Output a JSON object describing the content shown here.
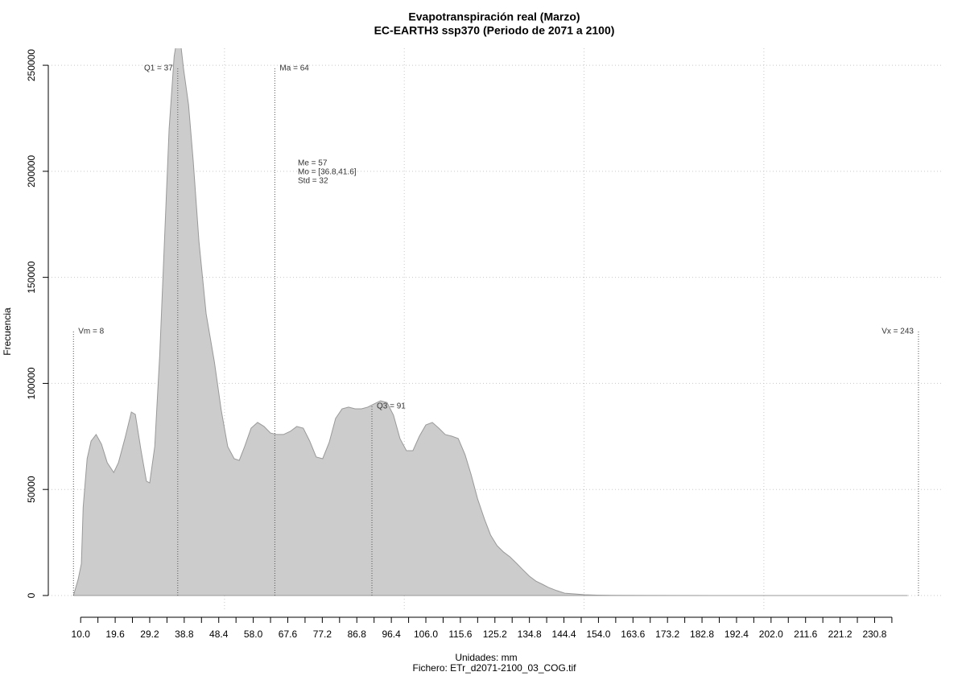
{
  "chart_data": {
    "type": "area",
    "title": "Evapotranspiración real (Marzo)",
    "subtitle": "EC-EARTH3 ssp370 (Periodo de 2071 a 2100)",
    "x_label": "Unidades: mm",
    "footnote": "Fichero: ETr_d2071-2100_03_COG.tif",
    "y_label": "Frecuencia",
    "color": "#cccccc",
    "line_color": "#999999",
    "x": [
      8,
      9.3,
      10.2,
      10.7,
      11.8,
      12.9,
      14.3,
      15.8,
      17.4,
      19.2,
      20.5,
      22.3,
      24.1,
      25.2,
      26.8,
      28.3,
      29.2,
      30.6,
      32.0,
      33.3,
      34.6,
      36.0,
      37.3,
      38.6,
      40.0,
      41.3,
      42.9,
      44.9,
      47.2,
      49.1,
      50.9,
      52.7,
      54.1,
      55.6,
      57.4,
      59.2,
      61.0,
      62.8,
      64.6,
      66.4,
      68.3,
      70.1,
      71.9,
      73.7,
      75.5,
      77.3,
      79.1,
      80.9,
      82.7,
      84.5,
      86.3,
      88.1,
      89.8,
      91.6,
      93.4,
      95.2,
      97.0,
      98.8,
      100.6,
      102.4,
      104.2,
      106.0,
      107.8,
      109.6,
      111.4,
      113.2,
      115.0,
      116.9,
      118.6,
      120.4,
      122.3,
      124.0,
      125.8,
      127.6,
      129.4,
      131.2,
      133.0,
      134.8,
      136.6,
      138.4,
      140.1,
      142.4,
      144.6,
      147.3,
      150.2,
      153.6,
      158,
      167,
      189,
      240
    ],
    "values": [
      0,
      7600,
      15000,
      41700,
      64500,
      72800,
      75900,
      71300,
      62600,
      58000,
      62600,
      74000,
      86500,
      85400,
      68300,
      53900,
      53100,
      70200,
      113800,
      166900,
      220000,
      254200,
      268000,
      248500,
      231400,
      204900,
      166900,
      132800,
      110000,
      87300,
      70200,
      64500,
      63700,
      70200,
      78900,
      81600,
      79700,
      76600,
      75900,
      75900,
      77400,
      79700,
      78900,
      72800,
      65300,
      64500,
      72100,
      83500,
      88000,
      88800,
      88000,
      88000,
      88800,
      90300,
      91800,
      91000,
      85000,
      74000,
      68300,
      68300,
      75100,
      80400,
      81600,
      78900,
      75900,
      75100,
      74000,
      66400,
      56900,
      45500,
      36000,
      28500,
      23500,
      20500,
      18200,
      15200,
      12100,
      9100,
      6800,
      5300,
      3800,
      2300,
      1100,
      760,
      380,
      190,
      80,
      20,
      0,
      0
    ],
    "xlim": [
      1,
      249.5
    ],
    "ylim": [
      -7600,
      258000
    ],
    "xticks": [
      {
        "value": 10,
        "label": "10.0"
      },
      {
        "value": 19.6,
        "label": "19.6"
      },
      {
        "value": 29.2,
        "label": "29.2"
      },
      {
        "value": 38.8,
        "label": "38.8"
      },
      {
        "value": 48.4,
        "label": "48.4"
      },
      {
        "value": 58,
        "label": "58.0"
      },
      {
        "value": 67.6,
        "label": "67.6"
      },
      {
        "value": 77.2,
        "label": "77.2"
      },
      {
        "value": 86.8,
        "label": "86.8"
      },
      {
        "value": 96.4,
        "label": "96.4"
      },
      {
        "value": 106,
        "label": "106.0"
      },
      {
        "value": 115.6,
        "label": "115.6"
      },
      {
        "value": 125.2,
        "label": "125.2"
      },
      {
        "value": 134.8,
        "label": "134.8"
      },
      {
        "value": 144.4,
        "label": "144.4"
      },
      {
        "value": 154,
        "label": "154.0"
      },
      {
        "value": 163.6,
        "label": "163.6"
      },
      {
        "value": 173.2,
        "label": "173.2"
      },
      {
        "value": 182.8,
        "label": "182.8"
      },
      {
        "value": 192.4,
        "label": "192.4"
      },
      {
        "value": 202,
        "label": "202.0"
      },
      {
        "value": 211.6,
        "label": "211.6"
      },
      {
        "value": 221.2,
        "label": "221.2"
      },
      {
        "value": 230.8,
        "label": "230.8"
      }
    ],
    "xminorticks": [
      14.8,
      24.4,
      34,
      43.6,
      53.2,
      62.8,
      72.4,
      82,
      91.6,
      101.2,
      110.8,
      120.4,
      130,
      139.6,
      149.2,
      158.8,
      168.4,
      178,
      187.6,
      197.2,
      206.8,
      216.4,
      226,
      235.6
    ],
    "xgrid": [
      50,
      100,
      150,
      200
    ],
    "yticks": [
      0,
      50000,
      100000,
      150000,
      200000,
      250000
    ],
    "grid": true,
    "markers": [
      {
        "label": "Vm = 8",
        "value": 8
      },
      {
        "label": "Q1 = 37",
        "value": 37
      },
      {
        "label": "Ma = 64",
        "value": 64
      },
      {
        "label": "Q3 = 91",
        "value": 91
      },
      {
        "label": "Vx = 243",
        "value": 243
      }
    ],
    "stats": [
      "Me = 57",
      "Mo = [36.8,41.6]",
      "Std = 32"
    ]
  }
}
